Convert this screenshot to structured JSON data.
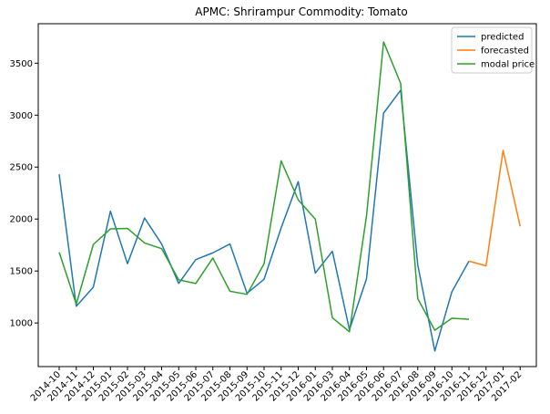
{
  "chart_data": {
    "type": "line",
    "title": "APMC: Shrirampur  Commodity: Tomato",
    "xlabel": "",
    "ylabel": "",
    "x": [
      "2014-10",
      "2014-11",
      "2014-12",
      "2015-01",
      "2015-02",
      "2015-03",
      "2015-04",
      "2015-05",
      "2015-06",
      "2015-07",
      "2015-08",
      "2015-09",
      "2015-10",
      "2015-11",
      "2015-12",
      "2016-01",
      "2016-03",
      "2016-04",
      "2016-05",
      "2016-06",
      "2016-07",
      "2016-08",
      "2016-09",
      "2016-10",
      "2016-11",
      "2016-12",
      "2017-01",
      "2017-02"
    ],
    "yticks": [
      1000,
      1500,
      2000,
      2500,
      3000,
      3500
    ],
    "ylim": [
      580,
      3880
    ],
    "grid": false,
    "legend_position": "top-right",
    "series": [
      {
        "name": "predicted",
        "color": "#1f77b4",
        "values": [
          2430,
          1160,
          1345,
          2075,
          1570,
          2010,
          1760,
          1380,
          1610,
          1675,
          1760,
          1285,
          1420,
          1915,
          2360,
          1480,
          1690,
          935,
          1425,
          3020,
          3240,
          1560,
          730,
          1300,
          1595,
          null,
          null,
          null
        ]
      },
      {
        "name": "forecasted",
        "color": "#ff7f0e",
        "values": [
          null,
          null,
          null,
          null,
          null,
          null,
          null,
          null,
          null,
          null,
          null,
          null,
          null,
          null,
          null,
          null,
          null,
          null,
          null,
          null,
          null,
          null,
          null,
          null,
          1595,
          1550,
          2660,
          1930
        ]
      },
      {
        "name": "modal price",
        "color": "#2ca02c",
        "values": [
          1680,
          1180,
          1755,
          1905,
          1910,
          1770,
          1715,
          1415,
          1380,
          1625,
          1305,
          1275,
          1570,
          2560,
          2185,
          2000,
          1050,
          915,
          2030,
          3705,
          3305,
          1235,
          930,
          1045,
          1035,
          null,
          null,
          null
        ]
      }
    ]
  }
}
